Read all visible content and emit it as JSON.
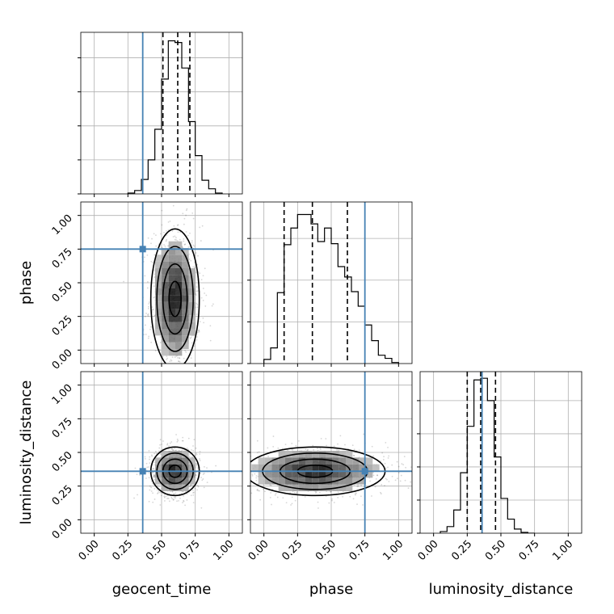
{
  "chart_data": {
    "type": "corner",
    "parameters": [
      "geocent_time",
      "phase",
      "luminosity_distance"
    ],
    "truth": {
      "geocent_time": 0.36,
      "phase": 0.75,
      "luminosity_distance": 0.36
    },
    "tick_labels": [
      "0.00",
      "0.25",
      "0.50",
      "0.75",
      "1.00"
    ],
    "axis_range": [
      -0.1,
      1.1
    ],
    "grid": true,
    "colors": {
      "truth": "#4682b4",
      "hist": "#000000"
    },
    "marginals": {
      "geocent_time": {
        "bins": [
          0.25,
          0.3,
          0.35,
          0.4,
          0.45,
          0.5,
          0.55,
          0.6,
          0.65,
          0.7,
          0.75,
          0.8,
          0.85,
          0.9,
          0.95
        ],
        "values": [
          1,
          4,
          17,
          40,
          76,
          135,
          180,
          178,
          148,
          85,
          45,
          16,
          6,
          1
        ],
        "ylim": [
          0,
          190
        ],
        "quantiles": [
          0.51,
          0.62,
          0.71
        ]
      },
      "phase": {
        "bins": [
          0.0,
          0.05,
          0.1,
          0.15,
          0.2,
          0.25,
          0.3,
          0.35,
          0.4,
          0.45,
          0.5,
          0.55,
          0.6,
          0.65,
          0.7,
          0.75,
          0.8,
          0.85,
          0.9,
          0.95,
          1.0
        ],
        "values": [
          4,
          15,
          68,
          114,
          130,
          143,
          143,
          134,
          117,
          130,
          115,
          93,
          83,
          69,
          55,
          37,
          22,
          8,
          5,
          1
        ],
        "ylim": [
          0,
          155
        ],
        "quantiles": [
          0.15,
          0.36,
          0.62
        ]
      },
      "luminosity_distance": {
        "bins": [
          0.05,
          0.1,
          0.15,
          0.2,
          0.25,
          0.3,
          0.35,
          0.4,
          0.45,
          0.5,
          0.55,
          0.6,
          0.65,
          0.7,
          0.75
        ],
        "values": [
          2,
          8,
          28,
          73,
          129,
          185,
          187,
          160,
          92,
          42,
          17,
          5,
          1,
          0
        ],
        "ylim": [
          0,
          195
        ],
        "quantiles": [
          0.25,
          0.35,
          0.46
        ]
      }
    },
    "joint": [
      {
        "x": "geocent_time",
        "y": "phase",
        "center": [
          0.6,
          0.38
        ],
        "sigma": [
          0.09,
          0.26
        ]
      },
      {
        "x": "geocent_time",
        "y": "luminosity_distance",
        "center": [
          0.6,
          0.36
        ],
        "sigma": [
          0.09,
          0.09
        ]
      },
      {
        "x": "phase",
        "y": "luminosity_distance",
        "center": [
          0.38,
          0.36
        ],
        "sigma": [
          0.26,
          0.09
        ]
      }
    ]
  }
}
